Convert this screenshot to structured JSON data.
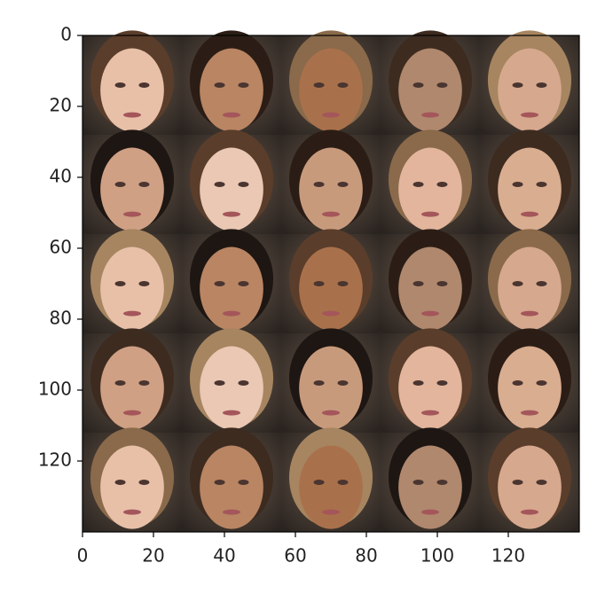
{
  "chart_data": {
    "type": "image",
    "xlim": [
      0,
      140
    ],
    "ylim": [
      140,
      0
    ],
    "xticks": [
      0,
      20,
      40,
      60,
      80,
      100,
      120
    ],
    "yticks": [
      0,
      20,
      40,
      60,
      80,
      100,
      120
    ]
  }
}
